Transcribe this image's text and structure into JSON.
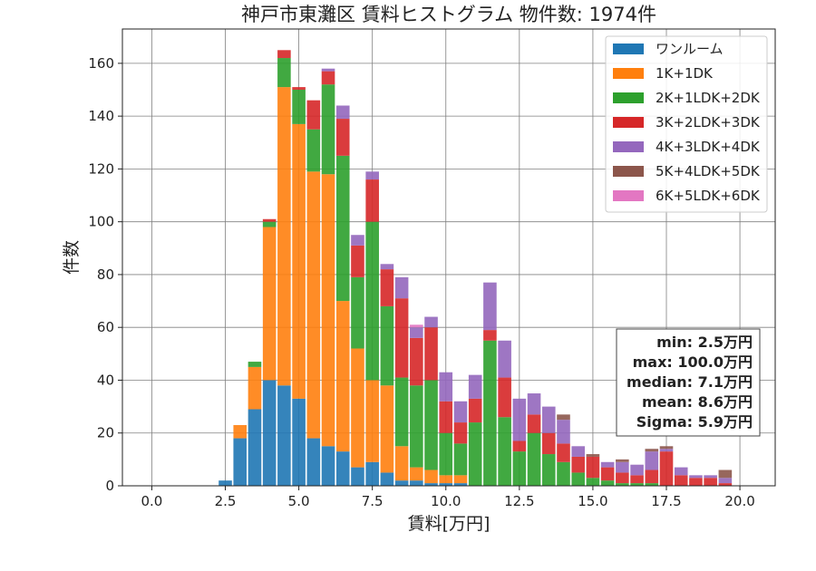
{
  "chart_data": {
    "type": "bar",
    "stacked": true,
    "title": "神戸市東灘区 賃料ヒストグラム 物件数: 1974件",
    "xlabel": "賃料[万円]",
    "ylabel": "件数",
    "xlim": [
      -1,
      21.2
    ],
    "ylim": [
      0,
      173
    ],
    "xticks": [
      0.0,
      2.5,
      5.0,
      7.5,
      10.0,
      12.5,
      15.0,
      17.5,
      20.0
    ],
    "yticks": [
      0,
      20,
      40,
      60,
      80,
      100,
      120,
      140,
      160
    ],
    "grid": true,
    "legend_position": "top-right",
    "bin_start": 2.25,
    "bin_width": 0.5,
    "x": [
      2.5,
      3.0,
      3.5,
      4.0,
      4.5,
      5.0,
      5.5,
      6.0,
      6.5,
      7.0,
      7.5,
      8.0,
      8.5,
      9.0,
      9.5,
      10.0,
      10.5,
      11.0,
      11.5,
      12.0,
      12.5,
      13.0,
      13.5,
      14.0,
      14.5,
      15.0,
      15.5,
      16.0,
      16.5,
      17.0,
      17.5,
      18.0,
      18.5,
      19.0,
      19.5
    ],
    "series": [
      {
        "name": "ワンルーム",
        "color": "#1f77b4",
        "values": [
          2,
          18,
          29,
          40,
          38,
          33,
          18,
          15,
          13,
          7,
          9,
          5,
          2,
          2,
          1,
          1,
          1,
          0,
          0,
          0,
          0,
          0,
          0,
          0,
          0,
          0,
          0,
          0,
          0,
          0,
          0,
          0,
          0,
          0,
          0
        ]
      },
      {
        "name": "1K+1DK",
        "color": "#ff7f0e",
        "values": [
          0,
          5,
          16,
          58,
          113,
          104,
          101,
          103,
          57,
          45,
          31,
          33,
          13,
          5,
          5,
          3,
          3,
          0,
          0,
          0,
          0,
          0,
          0,
          0,
          0,
          0,
          0,
          0,
          0,
          0,
          0,
          0,
          0,
          0,
          0
        ]
      },
      {
        "name": "2K+1LDK+2DK",
        "color": "#2ca02c",
        "values": [
          0,
          0,
          2,
          2,
          11,
          13,
          16,
          34,
          55,
          27,
          60,
          30,
          26,
          31,
          34,
          16,
          12,
          24,
          55,
          26,
          13,
          20,
          12,
          9,
          5,
          3,
          2,
          1,
          1,
          1,
          0,
          0,
          0,
          0,
          0
        ]
      },
      {
        "name": "3K+2LDK+3DK",
        "color": "#d62728",
        "values": [
          0,
          0,
          0,
          1,
          3,
          1,
          11,
          5,
          14,
          12,
          16,
          14,
          30,
          18,
          20,
          12,
          8,
          9,
          4,
          15,
          4,
          7,
          8,
          7,
          6,
          8,
          5,
          4,
          3,
          5,
          13,
          4,
          3,
          3,
          1
        ]
      },
      {
        "name": "4K+3LDK+4DK",
        "color": "#9467bd",
        "values": [
          0,
          0,
          0,
          0,
          0,
          0,
          0,
          1,
          5,
          4,
          3,
          2,
          8,
          4,
          4,
          11,
          8,
          9,
          18,
          14,
          16,
          8,
          10,
          9,
          4,
          0,
          2,
          4,
          4,
          7,
          1,
          3,
          1,
          1,
          2
        ]
      },
      {
        "name": "5K+4LDK+5DK",
        "color": "#8c564b",
        "values": [
          0,
          0,
          0,
          0,
          0,
          0,
          0,
          0,
          0,
          0,
          0,
          0,
          0,
          0,
          0,
          0,
          0,
          0,
          0,
          0,
          0,
          0,
          0,
          2,
          0,
          1,
          0,
          1,
          0,
          1,
          1,
          0,
          0,
          0,
          3
        ]
      },
      {
        "name": "6K+5LDK+6DK",
        "color": "#e377c2",
        "values": [
          0,
          0,
          0,
          0,
          0,
          0,
          0,
          0,
          0,
          0,
          0,
          0,
          0,
          1,
          0,
          0,
          0,
          0,
          0,
          0,
          0,
          0,
          0,
          0,
          0,
          0,
          0,
          0,
          0,
          0,
          0,
          0,
          0,
          0,
          0
        ]
      }
    ],
    "stats": [
      "min: 2.5万円",
      "max: 100.0万円",
      "median: 7.1万円",
      "mean: 8.6万円",
      "Sigma: 5.9万円"
    ]
  }
}
